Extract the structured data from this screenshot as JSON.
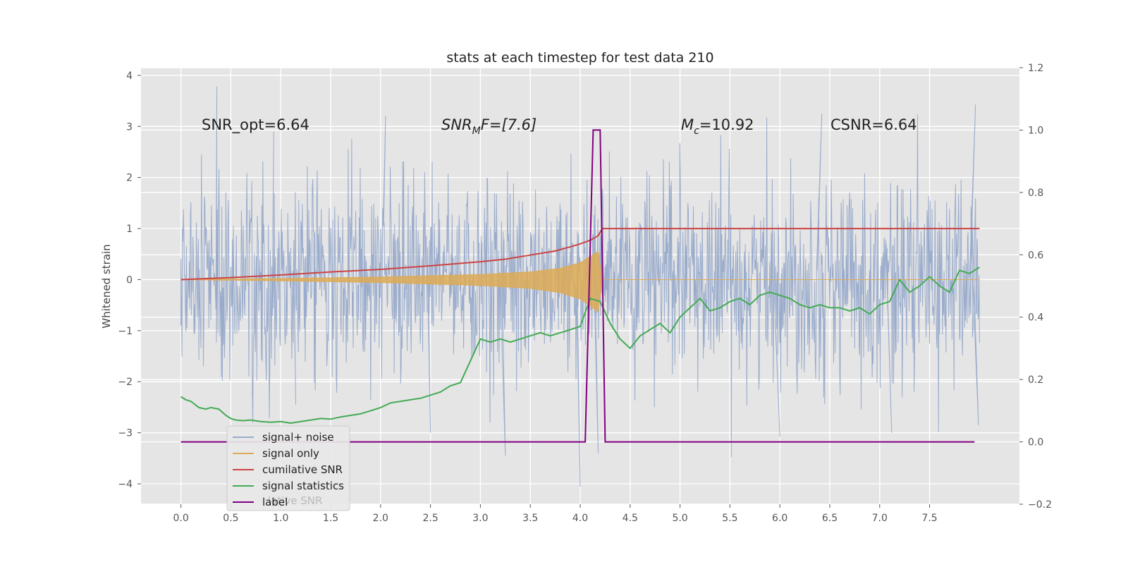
{
  "chart_data": {
    "type": "line",
    "title": "stats at each timestep for test data 210",
    "ylabel": "Whitened strain",
    "xlabel": "",
    "xlim": [
      -0.4,
      8.4
    ],
    "ylim": [
      -4.4,
      4.15
    ],
    "y2lim": [
      -0.2,
      1.2
    ],
    "grid": true,
    "legend_position": "lower-left",
    "x_ticks": [
      "0.0",
      "0.5",
      "1.0",
      "1.5",
      "2.0",
      "2.5",
      "3.0",
      "3.5",
      "4.0",
      "4.5",
      "5.0",
      "5.5",
      "6.0",
      "6.5",
      "7.0",
      "7.5"
    ],
    "y_ticks": [
      "4",
      "3",
      "2",
      "1",
      "0",
      "−1",
      "−2",
      "−3",
      "−4"
    ],
    "y2_ticks": [
      "1.2",
      "1.0",
      "0.8",
      "0.6",
      "0.4",
      "0.2",
      "0.0",
      "−0.2"
    ],
    "annotations": {
      "snr_opt": "SNR_opt=6.64",
      "snr_mf_main": "SNR",
      "snr_mf_sub": "M",
      "snr_mf_rest": "F=[7.6]",
      "mc_main": "M",
      "mc_sub": "c",
      "mc_rest": "=10.92",
      "csnr": "CSNR=6.64"
    },
    "series": [
      {
        "name": "signal+ noise",
        "axis": "left",
        "color": "#9aaccc",
        "noise_sigma": 1.0,
        "peaks_x": [
          0.0,
          0.36,
          0.93,
          1.15,
          2.05,
          2.5,
          3.25,
          4.0,
          4.18,
          6.42,
          6.0,
          7.12,
          7.96,
          7.99
        ],
        "peaks_y": [
          -0.9,
          3.78,
          2.9,
          -2.45,
          3.2,
          -3.0,
          -3.45,
          -4.05,
          -3.4,
          3.25,
          -3.08,
          -3.0,
          3.43,
          -2.85
        ]
      },
      {
        "name": "signal only",
        "axis": "left",
        "color": "#ddaa55",
        "envelope_x": [
          0.0,
          1.0,
          2.0,
          3.0,
          3.5,
          3.8,
          4.0,
          4.1,
          4.18,
          4.22,
          8.0
        ],
        "envelope_y": [
          0.0,
          0.02,
          0.05,
          0.1,
          0.15,
          0.22,
          0.33,
          0.45,
          0.55,
          0.0,
          0.0
        ]
      },
      {
        "name": "cumilative SNR",
        "axis": "left",
        "color": "#cc4444",
        "x": [
          0.0,
          0.5,
          1.0,
          1.5,
          2.0,
          2.5,
          3.0,
          3.25,
          3.5,
          3.75,
          3.9,
          4.0,
          4.1,
          4.18,
          4.22,
          8.0
        ],
        "y": [
          0.0,
          0.04,
          0.09,
          0.15,
          0.2,
          0.27,
          0.35,
          0.4,
          0.48,
          0.56,
          0.64,
          0.7,
          0.77,
          0.86,
          1.0,
          1.0
        ]
      },
      {
        "name": "signal statistics",
        "axis": "right",
        "color": "#44aa55",
        "x": [
          0.0,
          0.05,
          0.1,
          0.18,
          0.25,
          0.3,
          0.38,
          0.45,
          0.5,
          0.55,
          0.62,
          0.7,
          0.8,
          0.9,
          1.0,
          1.1,
          1.2,
          1.3,
          1.4,
          1.5,
          1.6,
          1.7,
          1.8,
          1.9,
          2.0,
          2.1,
          2.2,
          2.3,
          2.4,
          2.5,
          2.6,
          2.7,
          2.8,
          2.9,
          3.0,
          3.1,
          3.2,
          3.3,
          3.4,
          3.5,
          3.6,
          3.7,
          3.8,
          3.9,
          4.0,
          4.1,
          4.2,
          4.3,
          4.4,
          4.5,
          4.6,
          4.7,
          4.8,
          4.9,
          5.0,
          5.1,
          5.2,
          5.3,
          5.4,
          5.5,
          5.6,
          5.7,
          5.8,
          5.9,
          6.0,
          6.1,
          6.2,
          6.3,
          6.4,
          6.5,
          6.6,
          6.7,
          6.8,
          6.9,
          7.0,
          7.1,
          7.2,
          7.3,
          7.4,
          7.5,
          7.6,
          7.7,
          7.8,
          7.9,
          8.0
        ],
        "y": [
          0.145,
          0.135,
          0.13,
          0.11,
          0.105,
          0.11,
          0.105,
          0.085,
          0.075,
          0.07,
          0.068,
          0.07,
          0.065,
          0.063,
          0.065,
          0.06,
          0.065,
          0.07,
          0.075,
          0.073,
          0.08,
          0.085,
          0.09,
          0.1,
          0.11,
          0.125,
          0.13,
          0.135,
          0.14,
          0.15,
          0.16,
          0.18,
          0.19,
          0.26,
          0.33,
          0.32,
          0.33,
          0.32,
          0.33,
          0.34,
          0.35,
          0.34,
          0.35,
          0.36,
          0.37,
          0.46,
          0.45,
          0.38,
          0.33,
          0.3,
          0.34,
          0.36,
          0.38,
          0.35,
          0.4,
          0.43,
          0.46,
          0.42,
          0.43,
          0.45,
          0.46,
          0.44,
          0.47,
          0.48,
          0.47,
          0.46,
          0.44,
          0.43,
          0.44,
          0.43,
          0.43,
          0.42,
          0.43,
          0.41,
          0.44,
          0.45,
          0.52,
          0.48,
          0.5,
          0.53,
          0.5,
          0.48,
          0.55,
          0.54,
          0.56
        ]
      },
      {
        "name": "label",
        "axis": "right",
        "color": "#800080",
        "x": [
          0.0,
          4.05,
          4.13,
          4.2,
          4.25,
          7.95
        ],
        "y": [
          0.0,
          0.0,
          1.0,
          1.0,
          0.0,
          0.0
        ]
      }
    ],
    "legend_overlap_text": "label cumilative SNR"
  }
}
